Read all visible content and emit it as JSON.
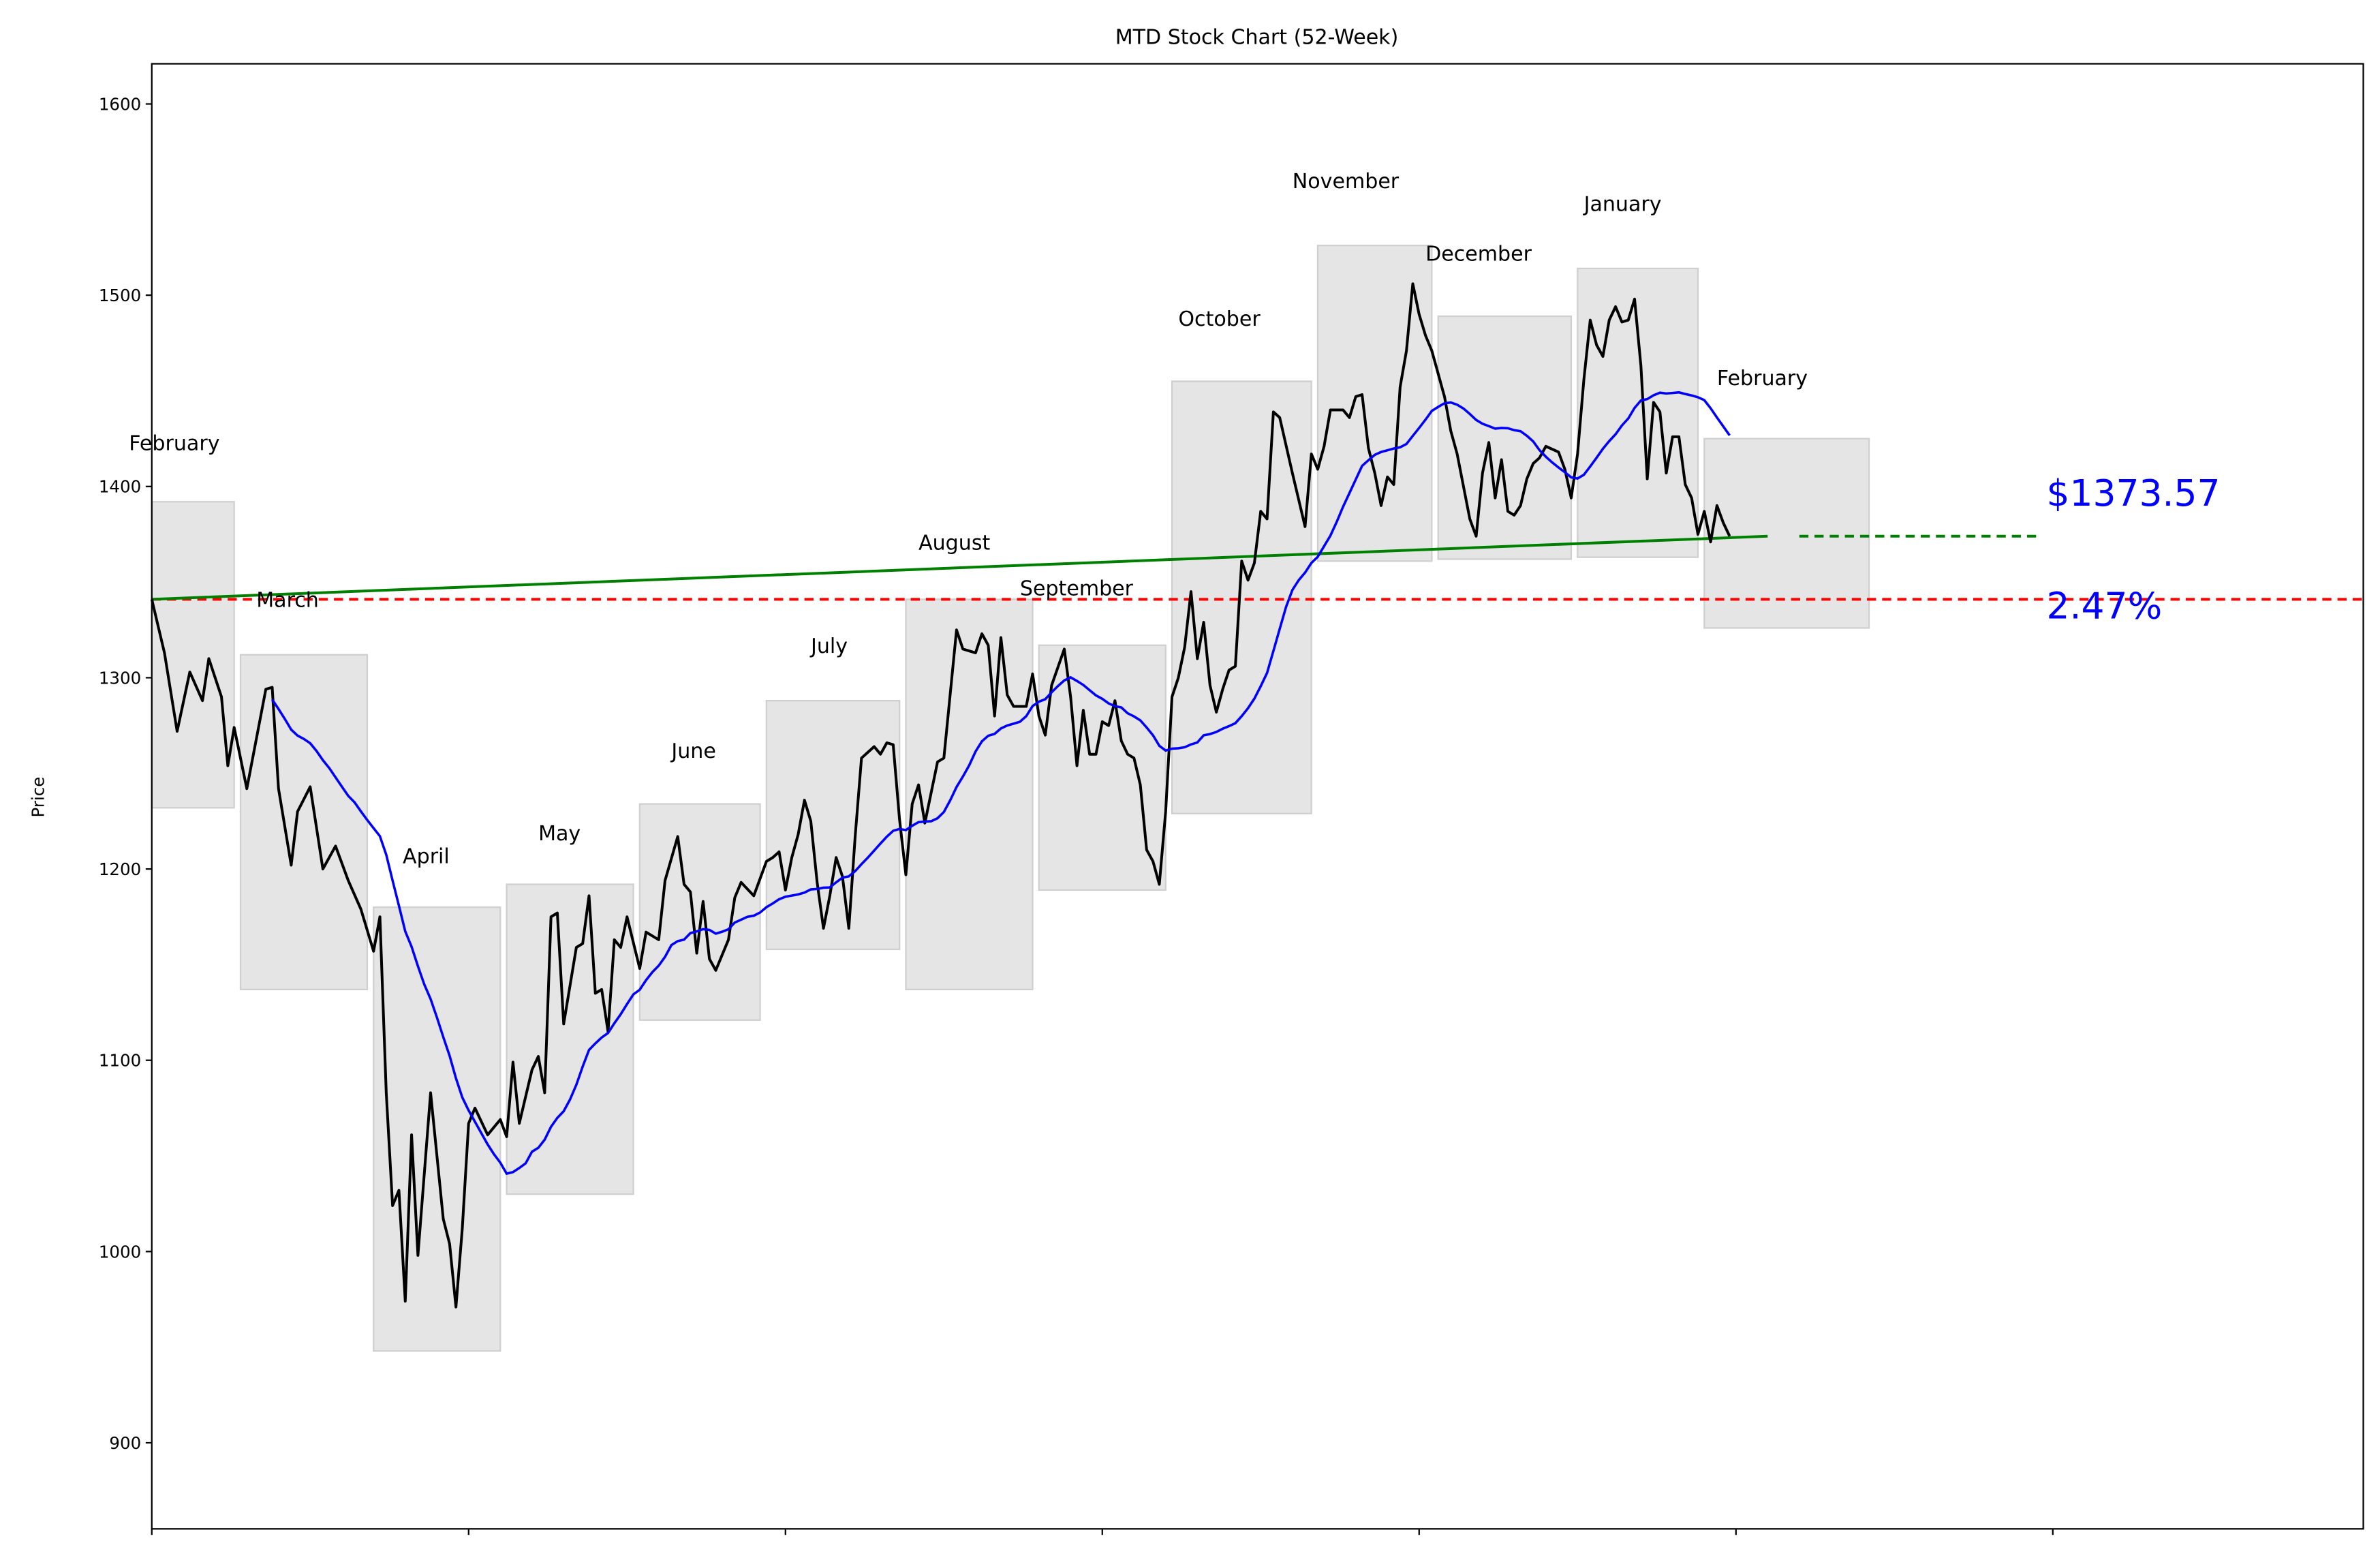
{
  "chart_data": {
    "type": "line",
    "title": "MTD Stock Chart (52-Week)",
    "xlabel": "",
    "ylabel": "Price",
    "xlim": [
      0,
      349
    ],
    "ylim": [
      855,
      1621
    ],
    "xticks": [
      0,
      50,
      100,
      150,
      200,
      250,
      300
    ],
    "yticks": [
      900,
      1000,
      1100,
      1200,
      1300,
      1400,
      1500,
      1600
    ],
    "grid": false,
    "colors": {
      "price": "#000000",
      "moving_average": "#0000ff",
      "trend": "#008000",
      "baseline": "#ff0000",
      "annotation": "#0000ff",
      "month_box": "#e5e5e5"
    },
    "price": [
      [
        0,
        1341
      ],
      [
        2,
        1313
      ],
      [
        4,
        1272
      ],
      [
        6,
        1303
      ],
      [
        8,
        1288
      ],
      [
        9,
        1310
      ],
      [
        11,
        1290
      ],
      [
        12,
        1254
      ],
      [
        13,
        1274
      ],
      [
        15,
        1242
      ],
      [
        18,
        1294
      ],
      [
        19,
        1295
      ],
      [
        20,
        1242
      ],
      [
        22,
        1202
      ],
      [
        23,
        1230
      ],
      [
        25,
        1243
      ],
      [
        27,
        1200
      ],
      [
        29,
        1212
      ],
      [
        31,
        1194
      ],
      [
        33,
        1179
      ],
      [
        35,
        1157
      ],
      [
        36,
        1175
      ],
      [
        37,
        1083
      ],
      [
        38,
        1024
      ],
      [
        39,
        1032
      ],
      [
        40,
        974
      ],
      [
        41,
        1061
      ],
      [
        42,
        998
      ],
      [
        44,
        1083
      ],
      [
        46,
        1017
      ],
      [
        47,
        1004
      ],
      [
        48,
        971
      ],
      [
        49,
        1012
      ],
      [
        50,
        1067
      ],
      [
        51,
        1075
      ],
      [
        53,
        1061
      ],
      [
        55,
        1069
      ],
      [
        56,
        1060
      ],
      [
        57,
        1099
      ],
      [
        58,
        1067
      ],
      [
        60,
        1095
      ],
      [
        61,
        1102
      ],
      [
        62,
        1083
      ],
      [
        63,
        1175
      ],
      [
        64,
        1177
      ],
      [
        65,
        1119
      ],
      [
        67,
        1159
      ],
      [
        68,
        1161
      ],
      [
        69,
        1186
      ],
      [
        70,
        1135
      ],
      [
        71,
        1137
      ],
      [
        72,
        1115
      ],
      [
        73,
        1163
      ],
      [
        74,
        1159
      ],
      [
        75,
        1175
      ],
      [
        77,
        1148
      ],
      [
        78,
        1167
      ],
      [
        80,
        1163
      ],
      [
        81,
        1194
      ],
      [
        83,
        1217
      ],
      [
        84,
        1192
      ],
      [
        85,
        1188
      ],
      [
        86,
        1156
      ],
      [
        87,
        1183
      ],
      [
        88,
        1153
      ],
      [
        89,
        1147
      ],
      [
        91,
        1163
      ],
      [
        92,
        1185
      ],
      [
        93,
        1193
      ],
      [
        95,
        1186
      ],
      [
        97,
        1204
      ],
      [
        98,
        1206
      ],
      [
        99,
        1209
      ],
      [
        100,
        1189
      ],
      [
        101,
        1206
      ],
      [
        102,
        1218
      ],
      [
        103,
        1236
      ],
      [
        104,
        1225
      ],
      [
        105,
        1193
      ],
      [
        106,
        1169
      ],
      [
        107,
        1186
      ],
      [
        108,
        1206
      ],
      [
        109,
        1196
      ],
      [
        110,
        1169
      ],
      [
        111,
        1217
      ],
      [
        112,
        1258
      ],
      [
        114,
        1264
      ],
      [
        115,
        1260
      ],
      [
        116,
        1266
      ],
      [
        117,
        1265
      ],
      [
        118,
        1226
      ],
      [
        119,
        1197
      ],
      [
        120,
        1234
      ],
      [
        121,
        1244
      ],
      [
        122,
        1224
      ],
      [
        124,
        1256
      ],
      [
        125,
        1258
      ],
      [
        127,
        1325
      ],
      [
        128,
        1315
      ],
      [
        130,
        1313
      ],
      [
        131,
        1323
      ],
      [
        132,
        1317
      ],
      [
        133,
        1280
      ],
      [
        134,
        1321
      ],
      [
        135,
        1291
      ],
      [
        136,
        1285
      ],
      [
        138,
        1285
      ],
      [
        139,
        1302
      ],
      [
        140,
        1280
      ],
      [
        141,
        1270
      ],
      [
        142,
        1296
      ],
      [
        144,
        1315
      ],
      [
        145,
        1290
      ],
      [
        146,
        1254
      ],
      [
        147,
        1283
      ],
      [
        148,
        1260
      ],
      [
        149,
        1260
      ],
      [
        150,
        1277
      ],
      [
        151,
        1275
      ],
      [
        152,
        1288
      ],
      [
        153,
        1267
      ],
      [
        154,
        1260
      ],
      [
        155,
        1258
      ],
      [
        156,
        1244
      ],
      [
        157,
        1210
      ],
      [
        158,
        1204
      ],
      [
        159,
        1192
      ],
      [
        160,
        1230
      ],
      [
        161,
        1290
      ],
      [
        162,
        1300
      ],
      [
        163,
        1316
      ],
      [
        164,
        1345
      ],
      [
        165,
        1310
      ],
      [
        166,
        1329
      ],
      [
        167,
        1296
      ],
      [
        168,
        1282
      ],
      [
        169,
        1294
      ],
      [
        170,
        1304
      ],
      [
        171,
        1306
      ],
      [
        172,
        1361
      ],
      [
        173,
        1351
      ],
      [
        174,
        1360
      ],
      [
        175,
        1387
      ],
      [
        176,
        1383
      ],
      [
        177,
        1439
      ],
      [
        178,
        1436
      ],
      [
        180,
        1407
      ],
      [
        181,
        1393
      ],
      [
        182,
        1379
      ],
      [
        183,
        1417
      ],
      [
        184,
        1409
      ],
      [
        185,
        1421
      ],
      [
        186,
        1440
      ],
      [
        188,
        1440
      ],
      [
        189,
        1436
      ],
      [
        190,
        1447
      ],
      [
        191,
        1448
      ],
      [
        192,
        1420
      ],
      [
        193,
        1407
      ],
      [
        194,
        1390
      ],
      [
        195,
        1405
      ],
      [
        196,
        1401
      ],
      [
        197,
        1452
      ],
      [
        198,
        1471
      ],
      [
        199,
        1506
      ],
      [
        200,
        1490
      ],
      [
        201,
        1479
      ],
      [
        202,
        1471
      ],
      [
        204,
        1447
      ],
      [
        205,
        1429
      ],
      [
        206,
        1417
      ],
      [
        208,
        1383
      ],
      [
        209,
        1374
      ],
      [
        210,
        1407
      ],
      [
        211,
        1423
      ],
      [
        212,
        1394
      ],
      [
        213,
        1414
      ],
      [
        214,
        1387
      ],
      [
        215,
        1385
      ],
      [
        216,
        1390
      ],
      [
        217,
        1404
      ],
      [
        218,
        1412
      ],
      [
        219,
        1415
      ],
      [
        220,
        1421
      ],
      [
        222,
        1418
      ],
      [
        223,
        1409
      ],
      [
        224,
        1394
      ],
      [
        225,
        1417
      ],
      [
        226,
        1456
      ],
      [
        227,
        1487
      ],
      [
        228,
        1474
      ],
      [
        229,
        1468
      ],
      [
        230,
        1487
      ],
      [
        231,
        1494
      ],
      [
        232,
        1486
      ],
      [
        233,
        1487
      ],
      [
        234,
        1498
      ],
      [
        235,
        1463
      ],
      [
        236,
        1404
      ],
      [
        237,
        1444
      ],
      [
        238,
        1439
      ],
      [
        239,
        1407
      ],
      [
        240,
        1426
      ],
      [
        241,
        1426
      ],
      [
        242,
        1401
      ],
      [
        243,
        1394
      ],
      [
        244,
        1375
      ],
      [
        245,
        1387
      ],
      [
        246,
        1371
      ],
      [
        247,
        1390
      ],
      [
        248,
        1381
      ],
      [
        249,
        1374
      ]
    ],
    "moving_average_window": 20,
    "trend_line": {
      "start": [
        0,
        1341
      ],
      "end": [
        255,
        1374
      ]
    },
    "trend_projection": {
      "start": [
        260,
        1374
      ],
      "end": [
        298,
        1374
      ]
    },
    "baseline": 1341,
    "months": [
      {
        "label": "February",
        "x0": 0,
        "x1": 13,
        "low": 1232,
        "high": 1392,
        "label_x": -3.6,
        "label_y": 1423
      },
      {
        "label": "March",
        "x0": 14,
        "x1": 34,
        "low": 1137,
        "high": 1312,
        "label_x": 16.5,
        "label_y": 1341
      },
      {
        "label": "April",
        "x0": 35,
        "x1": 55,
        "low": 948,
        "high": 1180,
        "label_x": 39.6,
        "label_y": 1207
      },
      {
        "label": "May",
        "x0": 56,
        "x1": 76,
        "low": 1030,
        "high": 1192,
        "label_x": 61,
        "label_y": 1219
      },
      {
        "label": "June",
        "x0": 77,
        "x1": 96,
        "low": 1121,
        "high": 1234,
        "label_x": 82,
        "label_y": 1262
      },
      {
        "label": "July",
        "x0": 97,
        "x1": 118,
        "low": 1158,
        "high": 1288,
        "label_x": 104,
        "label_y": 1317
      },
      {
        "label": "August",
        "x0": 119,
        "x1": 139,
        "low": 1137,
        "high": 1341,
        "label_x": 121,
        "label_y": 1371
      },
      {
        "label": "September",
        "x0": 140,
        "x1": 160,
        "low": 1189,
        "high": 1317,
        "label_x": 137,
        "label_y": 1347
      },
      {
        "label": "October",
        "x0": 161,
        "x1": 183,
        "low": 1229,
        "high": 1455,
        "label_x": 162,
        "label_y": 1488
      },
      {
        "label": "November",
        "x0": 184,
        "x1": 202,
        "low": 1361,
        "high": 1526,
        "label_x": 180,
        "label_y": 1560
      },
      {
        "label": "December",
        "x0": 203,
        "x1": 224,
        "low": 1362,
        "high": 1489,
        "label_x": 201,
        "label_y": 1522
      },
      {
        "label": "January",
        "x0": 225,
        "x1": 244,
        "low": 1363,
        "high": 1514,
        "label_x": 226,
        "label_y": 1548
      },
      {
        "label": "February",
        "x0": 245,
        "x1": 271,
        "low": 1326,
        "high": 1425,
        "label_x": 247,
        "label_y": 1457
      }
    ],
    "annotations": [
      {
        "text": "$1373.57",
        "x": 299,
        "y": 1390
      },
      {
        "text": "2.47%",
        "x": 299,
        "y": 1331
      }
    ]
  }
}
